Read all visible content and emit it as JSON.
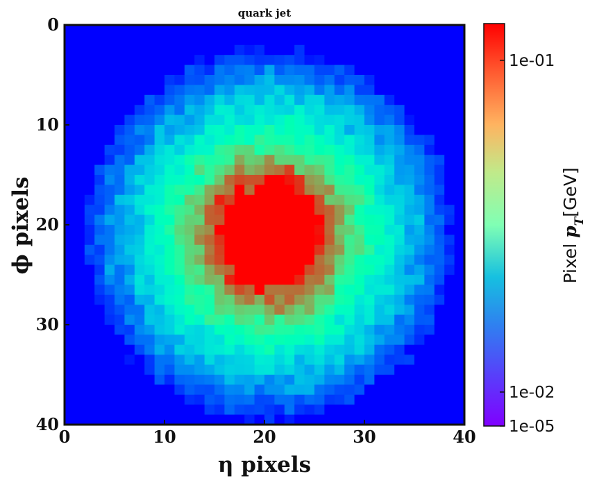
{
  "chart_data": {
    "type": "heatmap",
    "title": "quark jet",
    "xlabel": "η pixels",
    "ylabel": "ϕ pixels",
    "xlim": [
      0,
      40
    ],
    "ylim": [
      40,
      0
    ],
    "x_ticks": [
      "0",
      "10",
      "20",
      "30",
      "40"
    ],
    "y_ticks": [
      "0",
      "10",
      "20",
      "30",
      "40"
    ],
    "grid_size": [
      40,
      40
    ],
    "center": [
      20.5,
      21
    ],
    "colormap": "rainbow",
    "color_scale": "log",
    "colorbar": {
      "label_prefix": "Pixel ",
      "label_var": "p",
      "label_sub": "T",
      "label_unit": "[GeV]",
      "ticks": [
        "1e-01",
        "1e-02",
        "1e-05"
      ],
      "range": [
        "1e-05",
        "1.5e-01"
      ]
    },
    "value_levels": {
      "core_peak_gev": 0.15,
      "ring_gev": 0.05,
      "halo_gev": 0.02,
      "outer_gev": 0.008,
      "background_gev": 1e-05
    },
    "approx_radii_pixels": {
      "core": 5.2,
      "ring": 8.0,
      "halo": 11.5,
      "outer": 16.0,
      "edge": 18.5
    }
  }
}
